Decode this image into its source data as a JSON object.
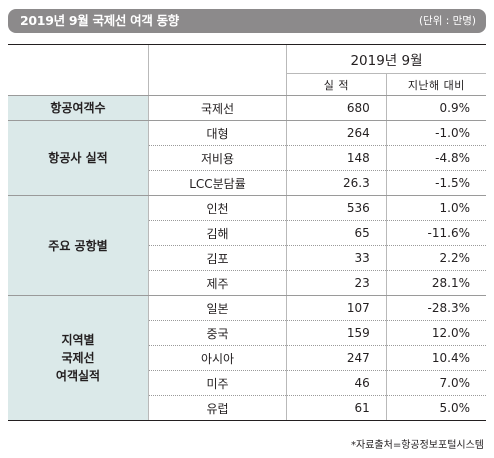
{
  "title": "2019년 9월 국제선 여객 동향",
  "unit": "(단위 : 만명)",
  "header": {
    "period": "2019년 9월",
    "col_value": "실 적",
    "col_yoy": "지난해 대비"
  },
  "sections": [
    {
      "label": "항공여객수",
      "rows": [
        {
          "name": "국제선",
          "value": "680",
          "yoy": "0.9%"
        }
      ]
    },
    {
      "label": "항공사 실적",
      "rows": [
        {
          "name": "대형",
          "value": "264",
          "yoy": "-1.0%"
        },
        {
          "name": "저비용",
          "value": "148",
          "yoy": "-4.8%"
        },
        {
          "name": "LCC분담률",
          "value": "26.3",
          "yoy": "-1.5%"
        }
      ]
    },
    {
      "label": "주요 공항별",
      "rows": [
        {
          "name": "인천",
          "value": "536",
          "yoy": "1.0%"
        },
        {
          "name": "김해",
          "value": "65",
          "yoy": "-11.6%"
        },
        {
          "name": "김포",
          "value": "33",
          "yoy": "2.2%"
        },
        {
          "name": "제주",
          "value": "23",
          "yoy": "28.1%"
        }
      ]
    },
    {
      "label": "지역별\n국제선\n여객실적",
      "rows": [
        {
          "name": "일본",
          "value": "107",
          "yoy": "-28.3%"
        },
        {
          "name": "중국",
          "value": "159",
          "yoy": "12.0%"
        },
        {
          "name": "아시아",
          "value": "247",
          "yoy": "10.4%"
        },
        {
          "name": "미주",
          "value": "46",
          "yoy": "7.0%"
        },
        {
          "name": "유럽",
          "value": "61",
          "yoy": "5.0%"
        }
      ]
    }
  ],
  "source": "*자료출처=항공정보포털시스템",
  "colors": {
    "title_bar": "#8c8a8b",
    "section_cell": "#dbe9e9",
    "rule": "#231f20"
  }
}
